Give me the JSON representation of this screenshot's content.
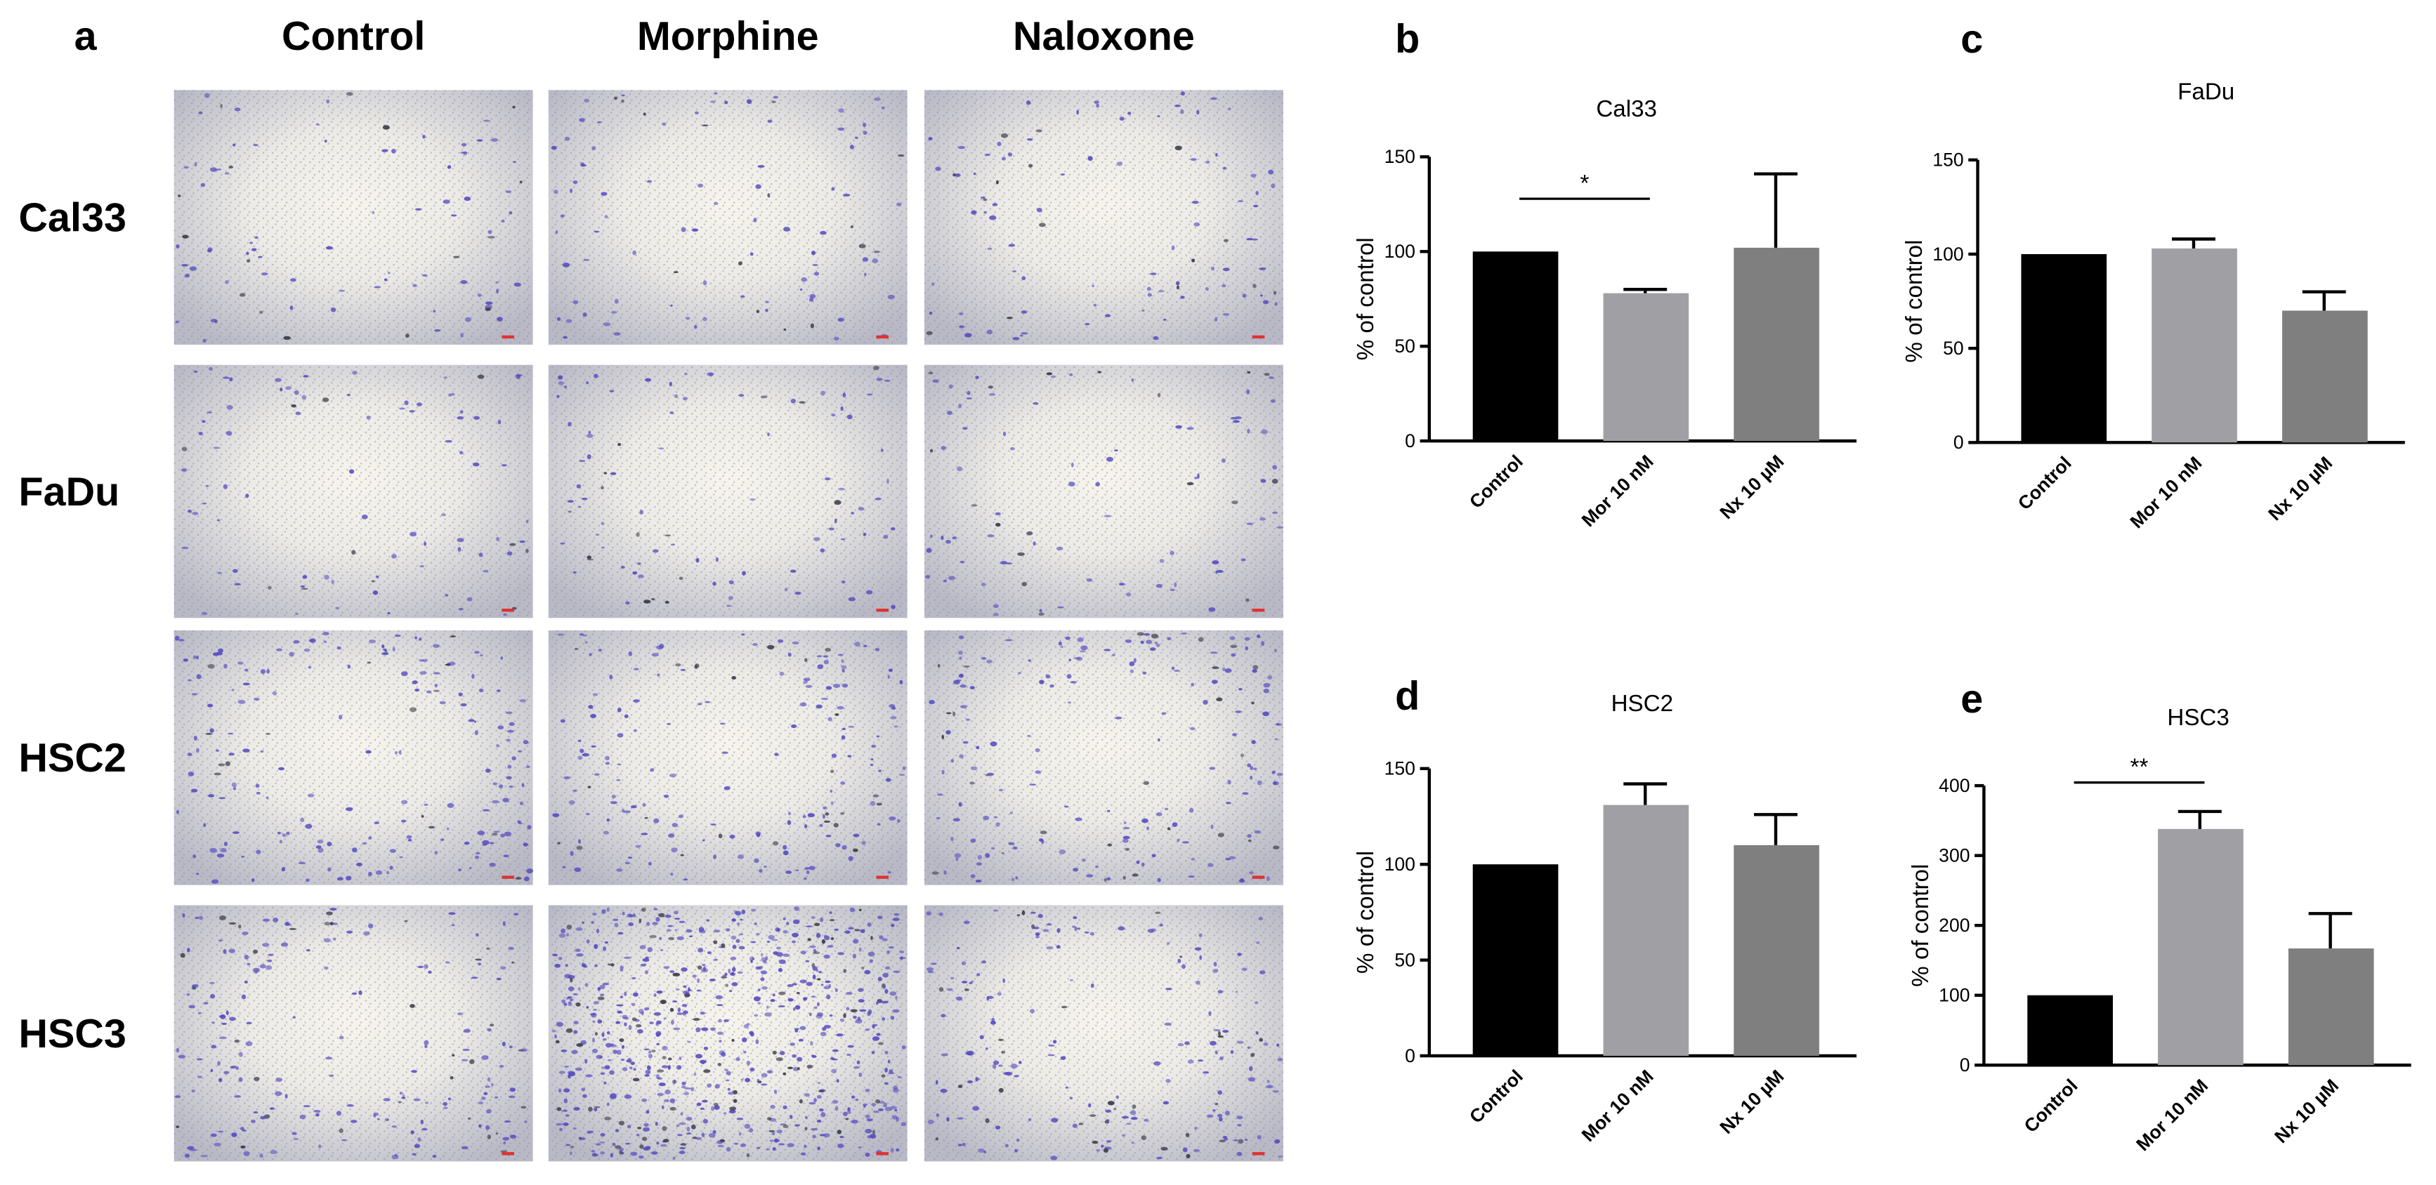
{
  "panel_a": {
    "label": "a",
    "columns": [
      "Control",
      "Morphine",
      "Naloxone"
    ],
    "rows": [
      "Cal33",
      "FaDu",
      "HSC2",
      "HSC3"
    ]
  },
  "chart_data": [
    {
      "type": "bar",
      "panel": "b",
      "title": "Cal33",
      "y_label": "% of control",
      "categories": [
        "Control",
        "Mor 10 nM",
        "Nx 10 µM"
      ],
      "values": [
        100,
        78,
        102
      ],
      "errors": [
        null,
        2,
        39
      ],
      "colors": [
        "#000000",
        "#a0a0a4",
        "#7f7f7f"
      ],
      "ylim": [
        0,
        150
      ],
      "yticks": [
        0,
        50,
        100,
        150
      ],
      "annotations": [
        "*"
      ]
    },
    {
      "type": "bar",
      "panel": "c",
      "title": "FaDu",
      "y_label": "% of control",
      "categories": [
        "Control",
        "Mor 10 nM",
        "Nx 10 µM"
      ],
      "values": [
        100,
        103,
        70
      ],
      "errors": [
        null,
        5,
        10
      ],
      "colors": [
        "#000000",
        "#a0a0a4",
        "#7f7f7f"
      ],
      "ylim": [
        0,
        150
      ],
      "yticks": [
        0,
        50,
        100,
        150
      ]
    },
    {
      "type": "bar",
      "panel": "d",
      "title": "HSC2",
      "y_label": "% of control",
      "categories": [
        "Control",
        "Mor 10 nM",
        "Nx 10 µM"
      ],
      "values": [
        100,
        131,
        110
      ],
      "errors": [
        null,
        11,
        16
      ],
      "colors": [
        "#000000",
        "#a0a0a4",
        "#7f7f7f"
      ],
      "ylim": [
        0,
        150
      ],
      "yticks": [
        0,
        50,
        100,
        150
      ]
    },
    {
      "type": "bar",
      "panel": "e",
      "title": "HSC3",
      "y_label": "% of control",
      "categories": [
        "Control",
        "Mor 10 nM",
        "Nx 10 µM"
      ],
      "values": [
        100,
        338,
        167
      ],
      "errors": [
        null,
        25,
        50
      ],
      "colors": [
        "#000000",
        "#a0a0a4",
        "#7f7f7f"
      ],
      "ylim": [
        0,
        400
      ],
      "yticks": [
        0,
        100,
        200,
        300,
        400
      ],
      "annotations": [
        "**"
      ]
    }
  ]
}
